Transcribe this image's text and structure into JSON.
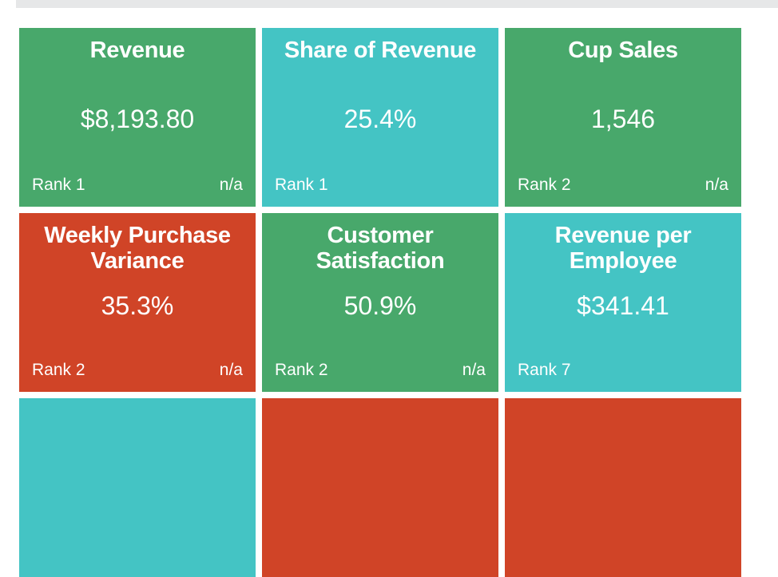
{
  "colors": {
    "green": "#48a86b",
    "teal": "#44c4c4",
    "red": "#d04427",
    "top_bar": "#e6e7e8"
  },
  "tiles": [
    {
      "title": "Revenue",
      "value": "$8,193.80",
      "rank": "Rank 1",
      "change": "n/a",
      "color": "green"
    },
    {
      "title": "Share of Revenue",
      "value": "25.4%",
      "rank": "Rank 1",
      "change": "",
      "color": "teal"
    },
    {
      "title": "Cup Sales",
      "value": "1,546",
      "rank": "Rank 2",
      "change": "n/a",
      "color": "green"
    },
    {
      "title": "Weekly Purchase Variance",
      "value": "35.3%",
      "rank": "Rank 2",
      "change": "n/a",
      "color": "red"
    },
    {
      "title": "Customer Satisfaction",
      "value": "50.9%",
      "rank": "Rank 2",
      "change": "n/a",
      "color": "green"
    },
    {
      "title": "Revenue per Employee",
      "value": "$341.41",
      "rank": "Rank 7",
      "change": "",
      "color": "teal"
    }
  ],
  "partial_tiles": [
    {
      "color": "teal"
    },
    {
      "color": "red"
    },
    {
      "color": "red"
    }
  ]
}
